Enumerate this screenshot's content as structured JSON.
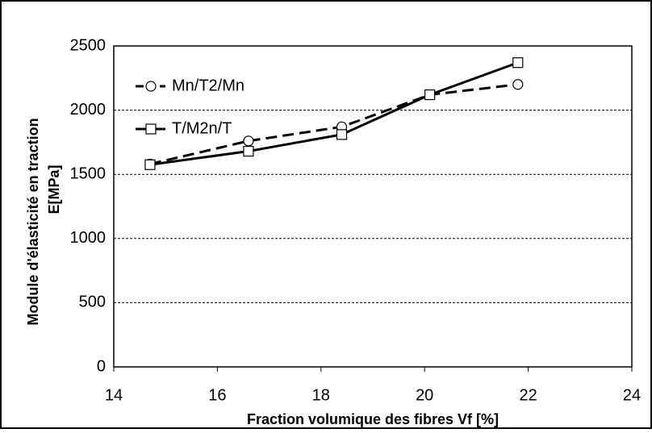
{
  "chart_data": {
    "type": "line",
    "x": [
      14.7,
      16.6,
      18.4,
      20.1,
      21.8
    ],
    "series": [
      {
        "name": "Mn/T2/Mn",
        "color": "#000000",
        "line_style": "dashed",
        "marker": "circle",
        "values": [
          1580,
          1760,
          1870,
          2120,
          2200
        ]
      },
      {
        "name": "T/M2n/T",
        "color": "#000000",
        "line_style": "solid",
        "marker": "square",
        "values": [
          1575,
          1680,
          1810,
          2120,
          2370
        ]
      }
    ],
    "xlabel": "Fraction volumique des fibres   Vf [%]",
    "ylabel": [
      "Module d'élasticité en traction",
      "E[MPa]"
    ],
    "xlim": [
      14,
      24
    ],
    "xticks": [
      14,
      16,
      18,
      20,
      22,
      24
    ],
    "ylim": [
      0,
      2500
    ],
    "yticks": [
      0,
      500,
      1000,
      1500,
      2000,
      2500
    ],
    "grid": true,
    "legend": "upper left"
  }
}
